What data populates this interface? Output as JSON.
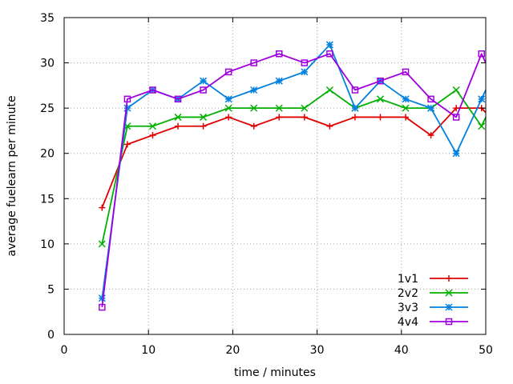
{
  "chart_data": {
    "type": "line",
    "title": "",
    "xlabel": "time / minutes",
    "ylabel": "average fuelearn per minute",
    "xlim": [
      0,
      50
    ],
    "ylim": [
      0,
      35
    ],
    "xticks": [
      0,
      10,
      20,
      30,
      40,
      50
    ],
    "yticks": [
      0,
      5,
      10,
      15,
      20,
      25,
      30,
      35
    ],
    "grid": true,
    "legend_position": "bottom-right",
    "series": [
      {
        "name": "1v1",
        "color": "#e00000",
        "marker": "plus",
        "x": [
          4.5,
          7.5,
          10.5,
          13.5,
          16.5,
          19.5,
          22.5,
          25.5,
          28.5,
          31.5,
          34.5,
          37.5,
          40.5,
          43.5,
          46.5,
          49.5,
          50
        ],
        "y": [
          14,
          21,
          22,
          23,
          23,
          24,
          23,
          24,
          24,
          23,
          24,
          24,
          24,
          22,
          25,
          25,
          24.5
        ]
      },
      {
        "name": "2v2",
        "color": "#00b000",
        "marker": "cross",
        "x": [
          4.5,
          7.5,
          10.5,
          13.5,
          16.5,
          19.5,
          22.5,
          25.5,
          28.5,
          31.5,
          34.5,
          37.5,
          40.5,
          43.5,
          46.5,
          49.5,
          50
        ],
        "y": [
          10,
          23,
          23,
          24,
          24,
          25,
          25,
          25,
          25,
          27,
          25,
          26,
          25,
          25,
          27,
          23,
          24
        ]
      },
      {
        "name": "3v3",
        "color": "#0080e0",
        "marker": "star",
        "x": [
          4.5,
          7.5,
          10.5,
          13.5,
          16.5,
          19.5,
          22.5,
          25.5,
          28.5,
          31.5,
          34.5,
          37.5,
          40.5,
          43.5,
          46.5,
          49.5,
          50
        ],
        "y": [
          4,
          25,
          27,
          26,
          28,
          26,
          27,
          28,
          29,
          32,
          25,
          28,
          26,
          25,
          20,
          26,
          27
        ]
      },
      {
        "name": "4v4",
        "color": "#a000e0",
        "marker": "square",
        "x": [
          4.5,
          7.5,
          10.5,
          13.5,
          16.5,
          19.5,
          22.5,
          25.5,
          28.5,
          31.5,
          34.5,
          37.5,
          40.5,
          43.5,
          46.5,
          49.5,
          50
        ],
        "y": [
          3,
          26,
          27,
          26,
          27,
          29,
          30,
          31,
          30,
          31,
          27,
          28,
          29,
          26,
          24,
          31,
          30
        ]
      }
    ]
  }
}
